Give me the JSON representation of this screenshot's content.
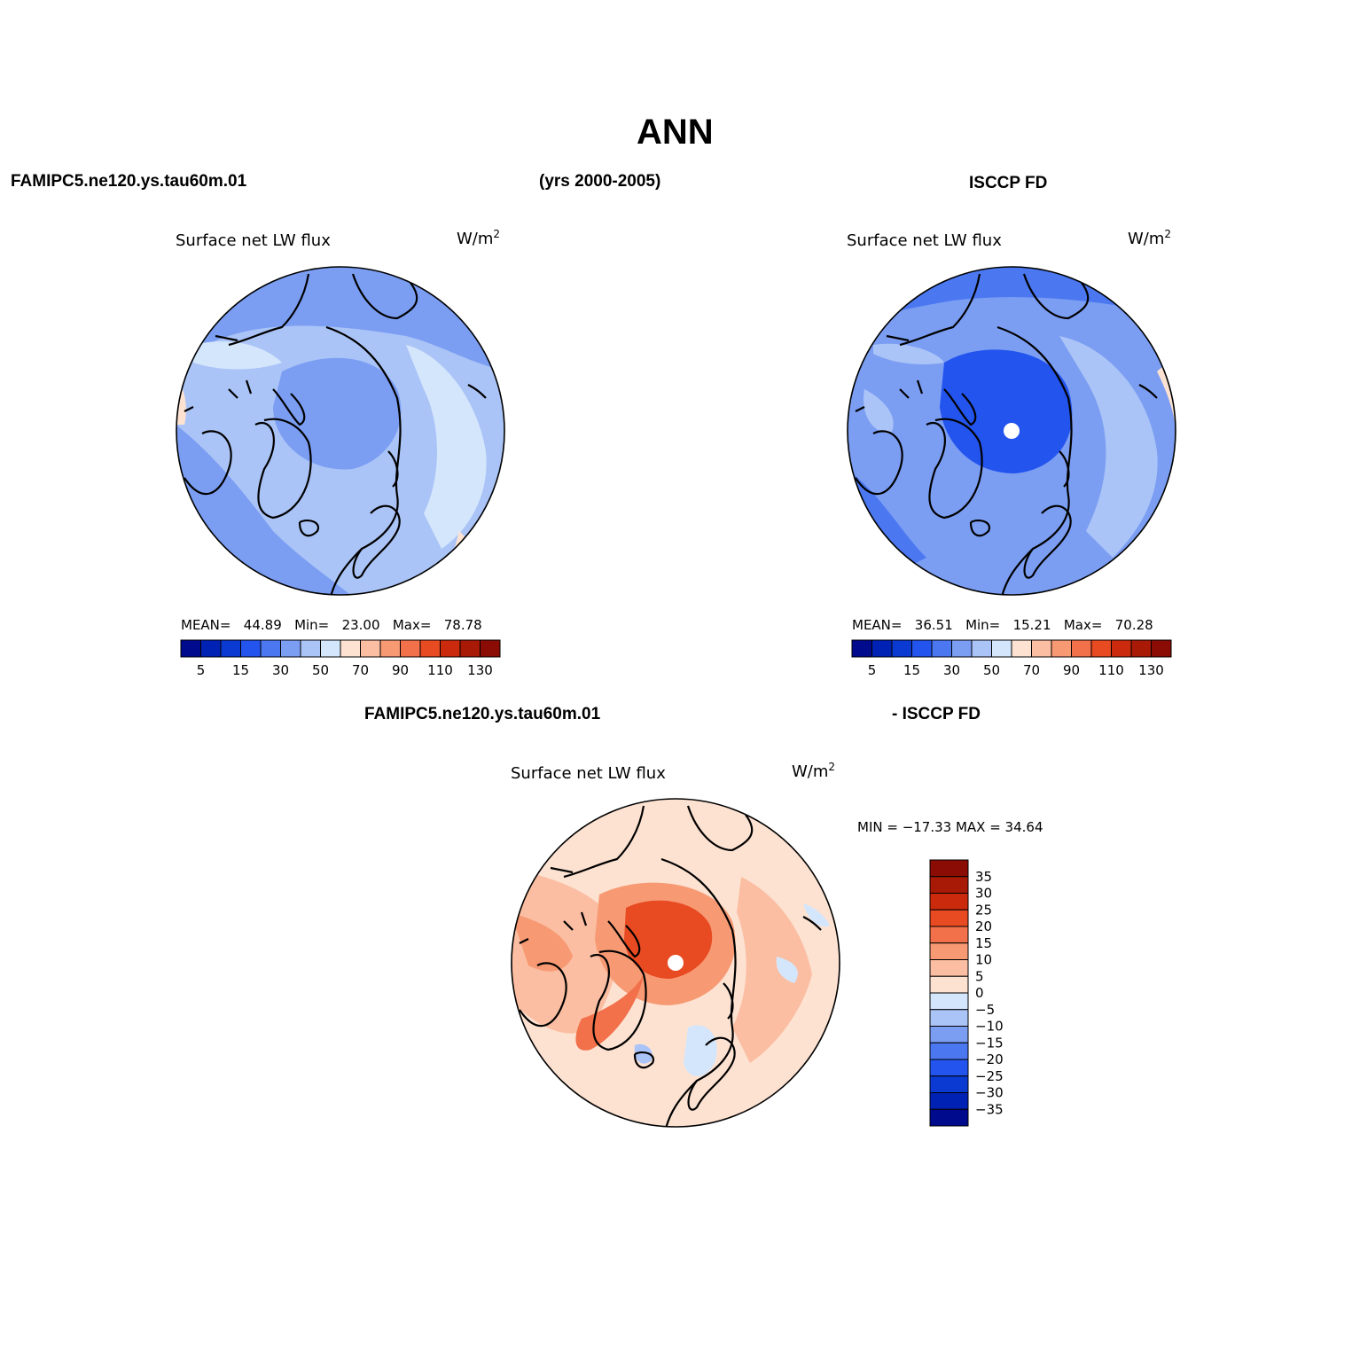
{
  "title": "ANN",
  "top_left_header": "FAMIPC5.ne120.ys.tau60m.01",
  "top_center_header": "(yrs 2000-2005)",
  "top_right_header": "ISCCP FD",
  "bottom_left_header": "FAMIPC5.ne120.ys.tau60m.01",
  "bottom_right_header": "- ISCCP FD",
  "colors": {
    "abs_scale": [
      "#000a8c",
      "#0022b4",
      "#0a3ad2",
      "#2354ee",
      "#4b78f0",
      "#7b9ef3",
      "#abc4f7",
      "#d4e6fc",
      "#fde2d2",
      "#fbbea2",
      "#f79a74",
      "#f2704a",
      "#e84a22",
      "#cc2a0c",
      "#a81a06",
      "#8a0c04"
    ],
    "diff_scale": [
      "#000a8c",
      "#0022b4",
      "#0a3ad2",
      "#2354ee",
      "#4b78f0",
      "#7b9ef3",
      "#abc4f7",
      "#d4e6fc",
      "#fde2d2",
      "#fbbea2",
      "#f79a74",
      "#f2704a",
      "#e84a22",
      "#cc2a0c",
      "#a81a06",
      "#8a0c04"
    ]
  },
  "panels": [
    {
      "name": "model",
      "var_label": "Surface net LW flux",
      "units": "W/m",
      "units_sup": "2",
      "mean_label": "MEAN=",
      "mean": "44.89",
      "min_label": "Min=",
      "min": "23.00",
      "max_label": "Max=",
      "max": "78.78",
      "colorbar_ticks": [
        "5",
        "15",
        "30",
        "50",
        "70",
        "90",
        "110",
        "130"
      ]
    },
    {
      "name": "obs",
      "var_label": "Surface net LW flux",
      "units": "W/m",
      "units_sup": "2",
      "mean_label": "MEAN=",
      "mean": "36.51",
      "min_label": "Min=",
      "min": "15.21",
      "max_label": "Max=",
      "max": "70.28",
      "colorbar_ticks": [
        "5",
        "15",
        "30",
        "50",
        "70",
        "90",
        "110",
        "130"
      ]
    },
    {
      "name": "difference",
      "var_label": "Surface net LW flux",
      "units": "W/m",
      "units_sup": "2",
      "minmax_text": "MIN = −17.33 MAX =  34.64",
      "colorbar_ticks": [
        "35",
        "30",
        "25",
        "20",
        "15",
        "10",
        "5",
        "0",
        "−5",
        "−10",
        "−15",
        "−20",
        "−25",
        "−30",
        "−35"
      ]
    }
  ]
}
